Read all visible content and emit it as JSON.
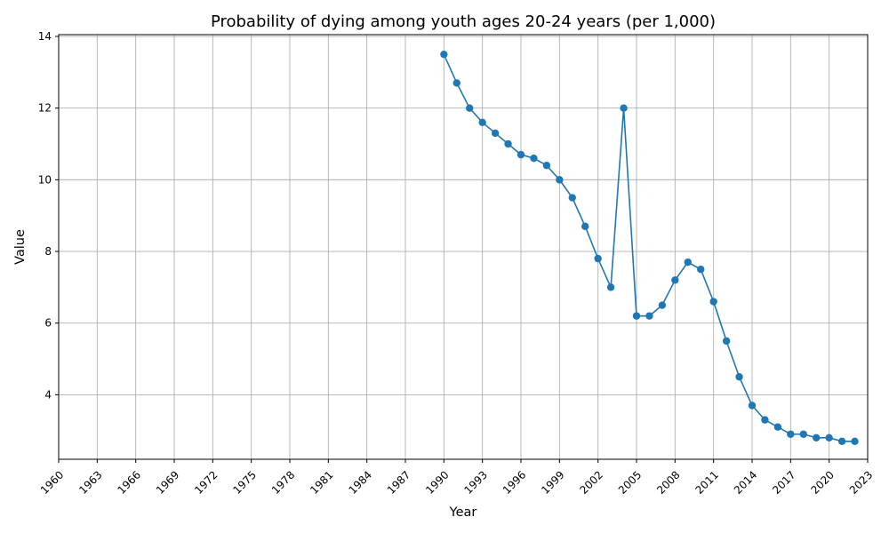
{
  "chart_data": {
    "type": "line",
    "title": "Probability of dying among youth ages 20-24 years (per 1,000)",
    "xlabel": "Year",
    "ylabel": "Value",
    "xlim": [
      1960,
      2023
    ],
    "ylim": [
      2.2,
      14.05
    ],
    "x_ticks": [
      1960,
      1963,
      1966,
      1969,
      1972,
      1975,
      1978,
      1981,
      1984,
      1987,
      1990,
      1993,
      1996,
      1999,
      2002,
      2005,
      2008,
      2011,
      2014,
      2017,
      2020,
      2023
    ],
    "y_ticks": [
      4,
      6,
      8,
      10,
      12,
      14
    ],
    "grid": true,
    "colors": {
      "series": "#1f77b4"
    },
    "series": [
      {
        "x": [
          1990,
          1991,
          1992,
          1993,
          1994,
          1995,
          1996,
          1997,
          1998,
          1999,
          2000,
          2001,
          2002,
          2003,
          2004,
          2005,
          2006,
          2007,
          2008,
          2009,
          2010,
          2011,
          2012,
          2013,
          2014,
          2015,
          2016,
          2017,
          2018,
          2019,
          2020,
          2021,
          2022
        ],
        "values": [
          13.5,
          12.7,
          12.0,
          11.6,
          11.3,
          11.0,
          10.7,
          10.6,
          10.4,
          10.0,
          9.5,
          8.7,
          7.8,
          7.0,
          12.0,
          6.2,
          6.2,
          6.5,
          7.2,
          7.7,
          7.5,
          6.6,
          5.5,
          4.5,
          3.7,
          3.3,
          3.1,
          2.9,
          2.9,
          2.8,
          2.8,
          2.7,
          2.7
        ]
      }
    ]
  }
}
